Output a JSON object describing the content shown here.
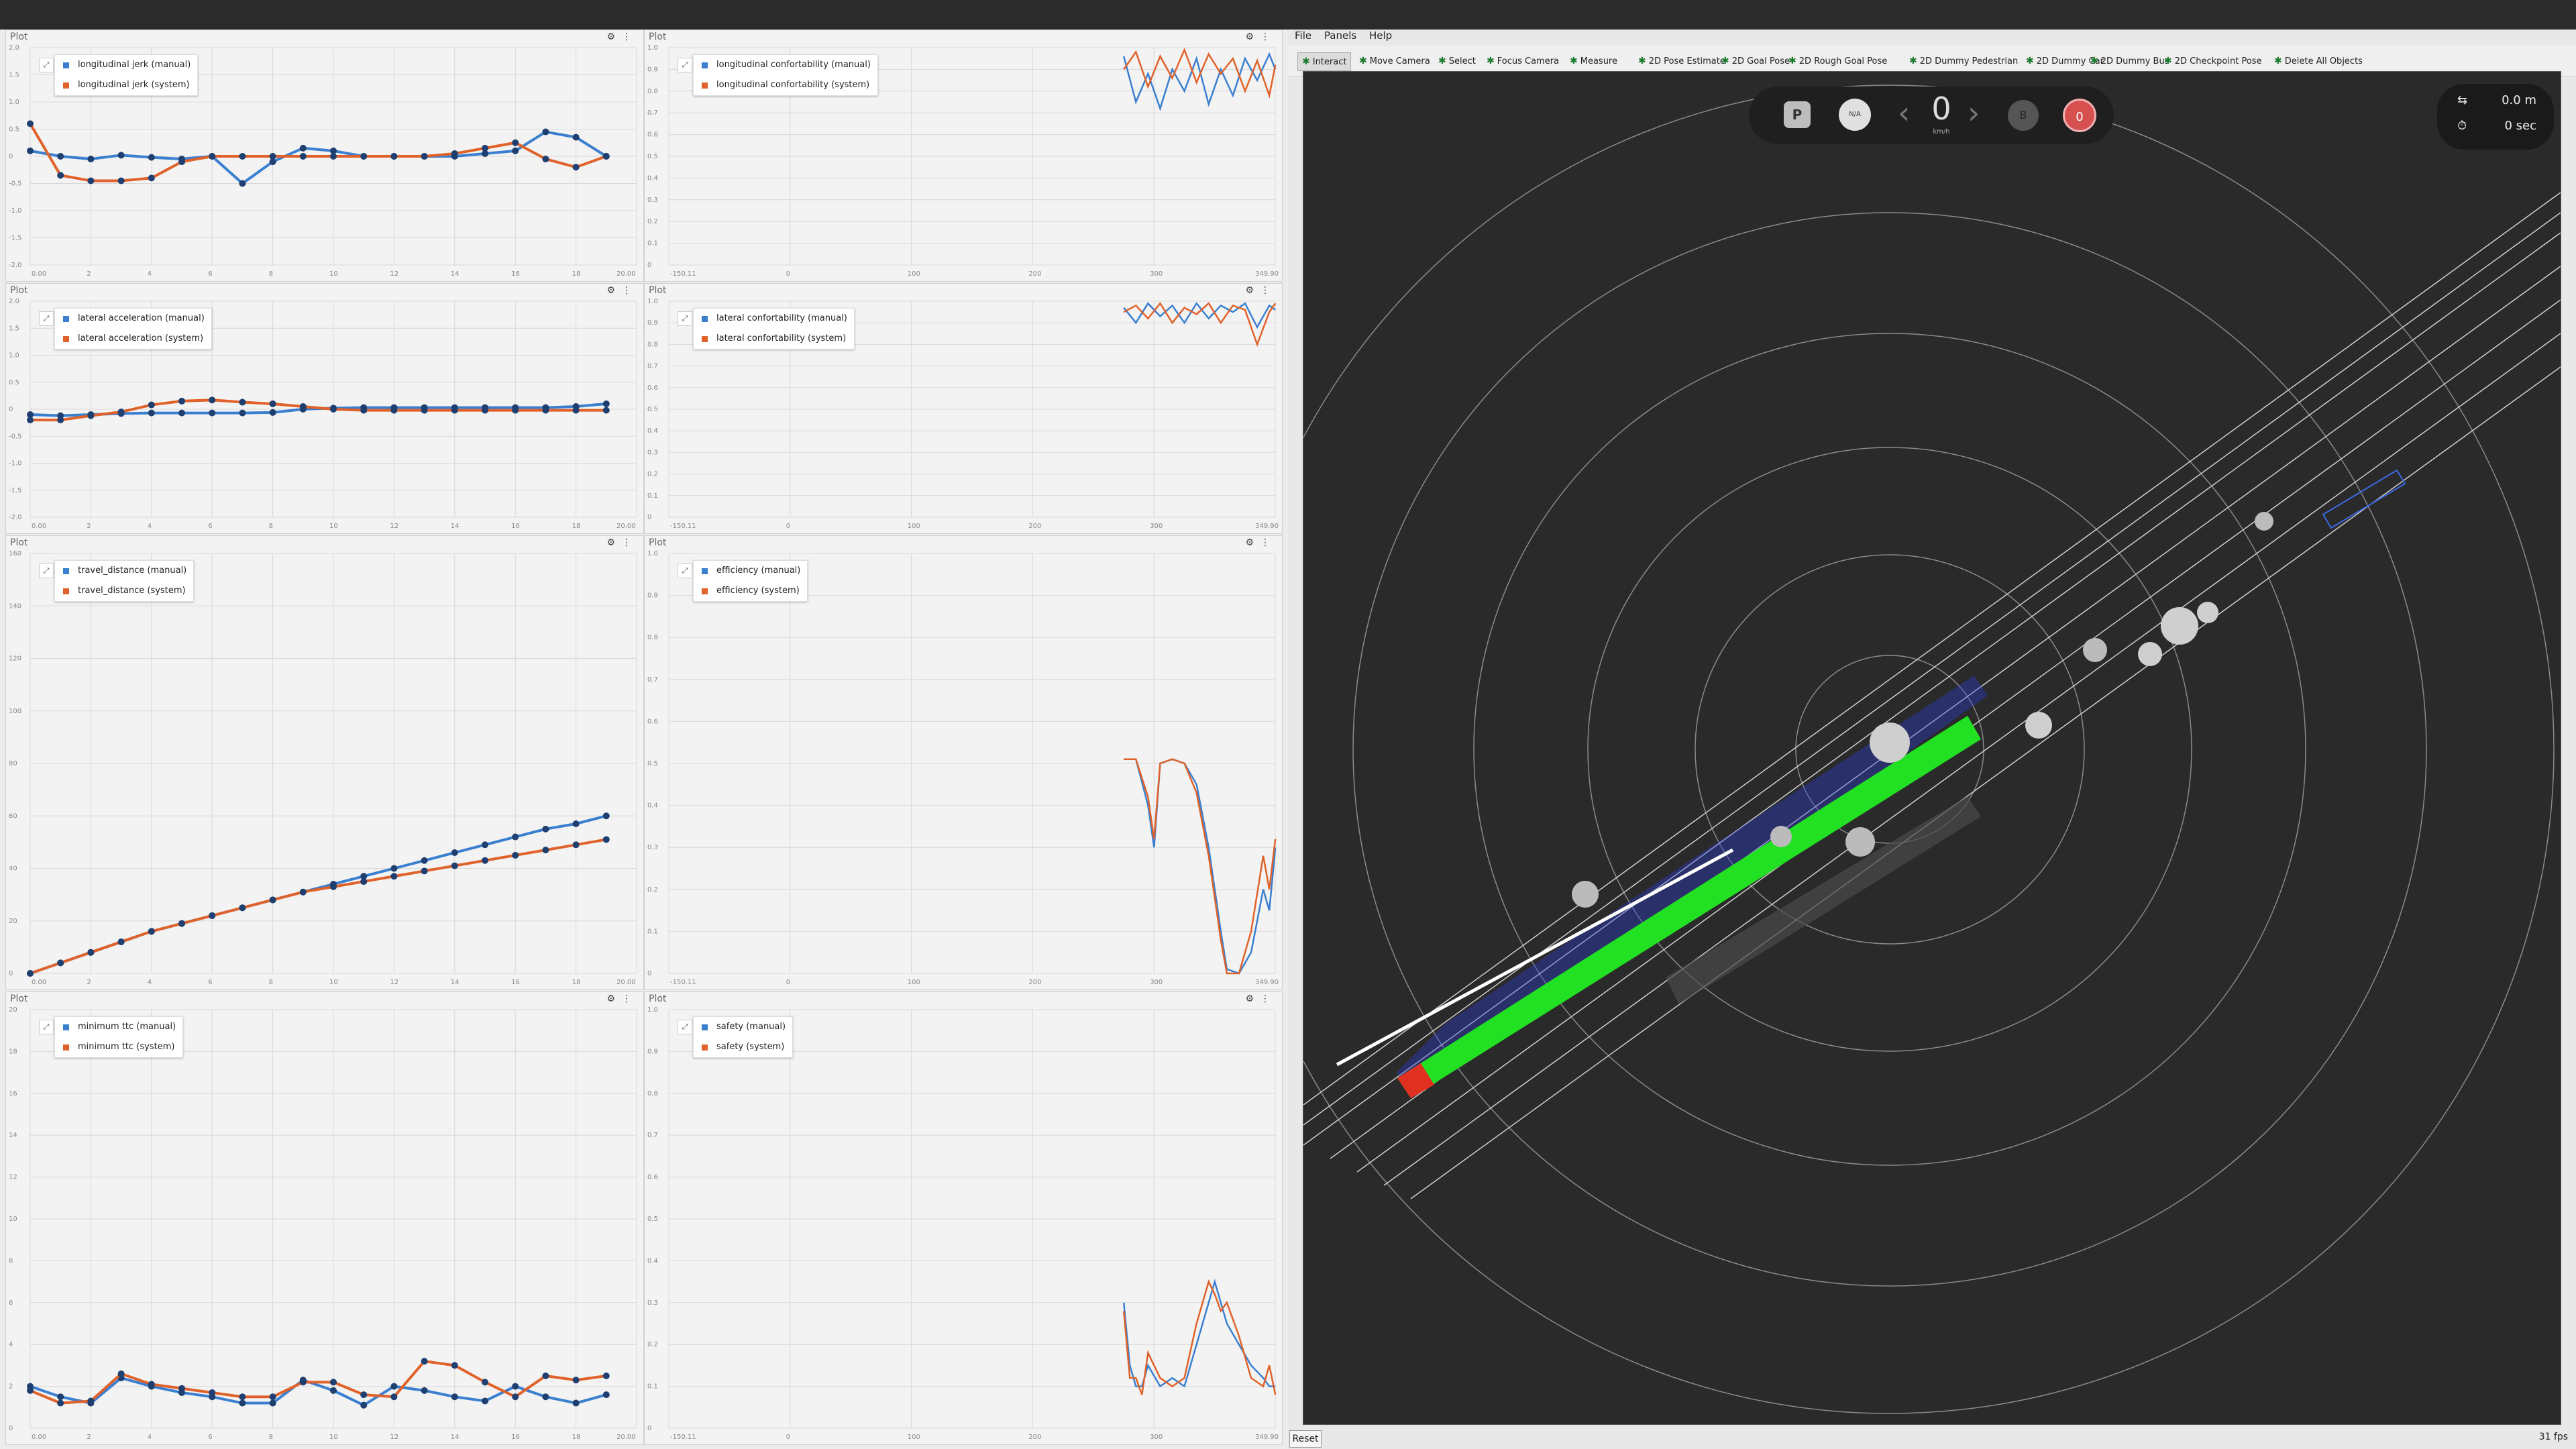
{
  "plots": [
    {
      "title": "Plot",
      "legend": [
        "longitudinal jerk (manual)",
        "longitudinal jerk (system)"
      ],
      "yticks": [
        "2.0",
        "1.5",
        "1.0",
        "0.5",
        "0",
        "-0.5",
        "-1.0",
        "-1.5",
        "-2.0"
      ],
      "xticks": [
        "0.00",
        "2",
        "4",
        "6",
        "8",
        "10",
        "12",
        "14",
        "16",
        "18",
        "20.00"
      ]
    },
    {
      "title": "Plot",
      "legend": [
        "longitudinal confortability (manual)",
        "longitudinal confortability (system)"
      ],
      "yticks": [
        "1.0",
        "0.9",
        "0.8",
        "0.7",
        "0.6",
        "0.5",
        "0.4",
        "0.3",
        "0.2",
        "0.1",
        "0"
      ],
      "xticks": [
        "-150.11",
        "0",
        "100",
        "200",
        "300",
        "349.90"
      ]
    },
    {
      "title": "Plot",
      "legend": [
        "lateral acceleration (manual)",
        "lateral acceleration (system)"
      ],
      "yticks": [
        "2.0",
        "1.5",
        "1.0",
        "0.5",
        "0",
        "-0.5",
        "-1.0",
        "-1.5",
        "-2.0"
      ],
      "xticks": [
        "0.00",
        "2",
        "4",
        "6",
        "8",
        "10",
        "12",
        "14",
        "16",
        "18",
        "20.00"
      ]
    },
    {
      "title": "Plot",
      "legend": [
        "lateral confortability (manual)",
        "lateral confortability (system)"
      ],
      "yticks": [
        "1.0",
        "0.9",
        "0.8",
        "0.7",
        "0.6",
        "0.5",
        "0.4",
        "0.3",
        "0.2",
        "0.1",
        "0"
      ],
      "xticks": [
        "-150.11",
        "0",
        "100",
        "200",
        "300",
        "349.90"
      ]
    },
    {
      "title": "Plot",
      "legend": [
        "travel_distance (manual)",
        "travel_distance (system)"
      ],
      "yticks": [
        "160",
        "140",
        "120",
        "100",
        "80",
        "60",
        "40",
        "20",
        "0"
      ],
      "xticks": [
        "0.00",
        "2",
        "4",
        "6",
        "8",
        "10",
        "12",
        "14",
        "16",
        "18",
        "20.00"
      ]
    },
    {
      "title": "Plot",
      "legend": [
        "efficiency (manual)",
        "efficiency (system)"
      ],
      "yticks": [
        "1.0",
        "0.9",
        "0.8",
        "0.7",
        "0.6",
        "0.5",
        "0.4",
        "0.3",
        "0.2",
        "0.1",
        "0"
      ],
      "xticks": [
        "-150.11",
        "0",
        "100",
        "200",
        "300",
        "349.90"
      ]
    },
    {
      "title": "Plot",
      "legend": [
        "minimum ttc (manual)",
        "minimum ttc (system)"
      ],
      "yticks": [
        "20",
        "18",
        "16",
        "14",
        "12",
        "10",
        "8",
        "6",
        "4",
        "2",
        "0"
      ],
      "xticks": [
        "0.00",
        "2",
        "4",
        "6",
        "8",
        "10",
        "12",
        "14",
        "16",
        "18",
        "20.00"
      ]
    },
    {
      "title": "Plot",
      "legend": [
        "safety (manual)",
        "safety (system)"
      ],
      "yticks": [
        "1.0",
        "0.9",
        "0.8",
        "0.7",
        "0.6",
        "0.5",
        "0.4",
        "0.3",
        "0.2",
        "0.1",
        "0"
      ],
      "xticks": [
        "-150.11",
        "0",
        "100",
        "200",
        "300",
        "349.90"
      ]
    }
  ],
  "chart_data": [
    {
      "type": "line",
      "title": "",
      "ylim": [
        -2,
        2
      ],
      "xlim": [
        0,
        20
      ],
      "series": [
        {
          "name": "longitudinal jerk (manual)",
          "x": [
            0,
            1,
            2,
            3,
            4,
            5,
            6,
            7,
            8,
            9,
            10,
            11,
            12,
            13,
            14,
            15,
            16,
            17,
            18,
            19
          ],
          "values": [
            0.1,
            0,
            -0.05,
            0.02,
            -0.02,
            -0.05,
            0,
            -0.5,
            -0.1,
            0.15,
            0.1,
            0,
            0,
            0,
            0,
            0.05,
            0.1,
            0.45,
            0.35,
            0
          ]
        },
        {
          "name": "longitudinal jerk (system)",
          "x": [
            0,
            1,
            2,
            3,
            4,
            5,
            6,
            7,
            8,
            9,
            10,
            11,
            12,
            13,
            14,
            15,
            16,
            17,
            18,
            19
          ],
          "values": [
            0.6,
            -0.35,
            -0.45,
            -0.45,
            -0.4,
            -0.1,
            0,
            0,
            0,
            0,
            0,
            0,
            0,
            0,
            0.05,
            0.15,
            0.25,
            -0.05,
            -0.2,
            0
          ]
        }
      ]
    },
    {
      "type": "line",
      "title": "",
      "ylim": [
        0,
        1
      ],
      "xlim": [
        -150.11,
        349.9
      ],
      "series": [
        {
          "name": "longitudinal confortability (manual)",
          "x": [
            225,
            235,
            245,
            255,
            265,
            275,
            285,
            295,
            305,
            315,
            325,
            335,
            345,
            350
          ],
          "values": [
            0.96,
            0.75,
            0.88,
            0.72,
            0.9,
            0.8,
            0.95,
            0.74,
            0.9,
            0.78,
            0.95,
            0.85,
            0.97,
            0.9
          ]
        },
        {
          "name": "longitudinal confortability (system)",
          "x": [
            225,
            235,
            245,
            255,
            265,
            275,
            285,
            295,
            305,
            315,
            325,
            335,
            345,
            350
          ],
          "values": [
            0.9,
            0.98,
            0.82,
            0.96,
            0.86,
            0.99,
            0.84,
            0.97,
            0.88,
            0.95,
            0.8,
            0.94,
            0.78,
            0.92
          ]
        }
      ]
    },
    {
      "type": "line",
      "title": "",
      "ylim": [
        -2,
        2
      ],
      "xlim": [
        0,
        20
      ],
      "series": [
        {
          "name": "lateral acceleration (manual)",
          "x": [
            0,
            1,
            2,
            3,
            4,
            5,
            6,
            7,
            8,
            9,
            10,
            11,
            12,
            13,
            14,
            15,
            16,
            17,
            18,
            19
          ],
          "values": [
            -0.1,
            -0.12,
            -0.1,
            -0.08,
            -0.07,
            -0.07,
            -0.07,
            -0.07,
            -0.06,
            0,
            0.02,
            0.03,
            0.03,
            0.03,
            0.03,
            0.03,
            0.03,
            0.03,
            0.05,
            0.1
          ]
        },
        {
          "name": "lateral acceleration (system)",
          "x": [
            0,
            1,
            2,
            3,
            4,
            5,
            6,
            7,
            8,
            9,
            10,
            11,
            12,
            13,
            14,
            15,
            16,
            17,
            18,
            19
          ],
          "values": [
            -0.2,
            -0.2,
            -0.12,
            -0.05,
            0.08,
            0.15,
            0.17,
            0.13,
            0.1,
            0.05,
            0,
            -0.02,
            -0.02,
            -0.02,
            -0.02,
            -0.02,
            -0.02,
            -0.02,
            -0.02,
            -0.02
          ]
        }
      ]
    },
    {
      "type": "line",
      "title": "",
      "ylim": [
        0,
        1
      ],
      "xlim": [
        -150.11,
        349.9
      ],
      "series": [
        {
          "name": "lateral confortability (manual)",
          "x": [
            225,
            235,
            245,
            255,
            265,
            275,
            285,
            295,
            305,
            315,
            325,
            335,
            345,
            350
          ],
          "values": [
            0.97,
            0.9,
            0.99,
            0.93,
            0.98,
            0.9,
            0.99,
            0.92,
            0.98,
            0.95,
            0.99,
            0.88,
            0.98,
            0.96
          ]
        },
        {
          "name": "lateral confortability (system)",
          "x": [
            225,
            235,
            245,
            255,
            265,
            275,
            285,
            295,
            305,
            315,
            325,
            335,
            345,
            350
          ],
          "values": [
            0.95,
            0.98,
            0.92,
            0.99,
            0.9,
            0.97,
            0.94,
            0.99,
            0.9,
            0.98,
            0.96,
            0.8,
            0.95,
            0.99
          ]
        }
      ]
    },
    {
      "type": "line",
      "title": "",
      "ylim": [
        0,
        160
      ],
      "xlim": [
        0,
        20
      ],
      "series": [
        {
          "name": "travel_distance (manual)",
          "x": [
            0,
            1,
            2,
            3,
            4,
            5,
            6,
            7,
            8,
            9,
            10,
            11,
            12,
            13,
            14,
            15,
            16,
            17,
            18,
            19
          ],
          "values": [
            0,
            4,
            8,
            12,
            16,
            19,
            22,
            25,
            28,
            31,
            34,
            37,
            40,
            43,
            46,
            49,
            52,
            55,
            57,
            60
          ]
        },
        {
          "name": "travel_distance (system)",
          "x": [
            0,
            1,
            2,
            3,
            4,
            5,
            6,
            7,
            8,
            9,
            10,
            11,
            12,
            13,
            14,
            15,
            16,
            17,
            18,
            19
          ],
          "values": [
            0,
            4,
            8,
            12,
            16,
            19,
            22,
            25,
            28,
            31,
            33,
            35,
            37,
            39,
            41,
            43,
            45,
            47,
            49,
            51
          ]
        }
      ]
    },
    {
      "type": "line",
      "title": "",
      "ylim": [
        0,
        1
      ],
      "xlim": [
        -150.11,
        349.9
      ],
      "series": [
        {
          "name": "efficiency (manual)",
          "x": [
            225,
            235,
            245,
            250,
            255,
            265,
            275,
            285,
            295,
            305,
            310,
            320,
            330,
            340,
            345,
            350
          ],
          "values": [
            0.51,
            0.51,
            0.4,
            0.3,
            0.5,
            0.51,
            0.5,
            0.45,
            0.3,
            0.1,
            0.01,
            0,
            0.05,
            0.2,
            0.15,
            0.3
          ]
        },
        {
          "name": "efficiency (system)",
          "x": [
            225,
            235,
            245,
            250,
            255,
            265,
            275,
            285,
            295,
            305,
            310,
            320,
            330,
            340,
            345,
            350
          ],
          "values": [
            0.51,
            0.51,
            0.42,
            0.32,
            0.5,
            0.51,
            0.5,
            0.43,
            0.28,
            0.08,
            0,
            0,
            0.1,
            0.28,
            0.2,
            0.32
          ]
        }
      ]
    },
    {
      "type": "line",
      "title": "",
      "ylim": [
        0,
        20
      ],
      "xlim": [
        0,
        20
      ],
      "series": [
        {
          "name": "minimum ttc (manual)",
          "x": [
            0,
            1,
            2,
            3,
            4,
            5,
            6,
            7,
            8,
            9,
            10,
            11,
            12,
            13,
            14,
            15,
            16,
            17,
            18,
            19
          ],
          "values": [
            2,
            1.5,
            1.2,
            2.4,
            2,
            1.7,
            1.5,
            1.2,
            1.2,
            2.3,
            1.8,
            1.1,
            2,
            1.8,
            1.5,
            1.3,
            2,
            1.5,
            1.2,
            1.6
          ]
        },
        {
          "name": "minimum ttc (system)",
          "x": [
            0,
            1,
            2,
            3,
            4,
            5,
            6,
            7,
            8,
            9,
            10,
            11,
            12,
            13,
            14,
            15,
            16,
            17,
            18,
            19
          ],
          "values": [
            1.8,
            1.2,
            1.3,
            2.6,
            2.1,
            1.9,
            1.7,
            1.5,
            1.5,
            2.2,
            2.2,
            1.6,
            1.5,
            3.2,
            3,
            2.2,
            1.5,
            2.5,
            2.3,
            2.5
          ]
        }
      ]
    },
    {
      "type": "line",
      "title": "",
      "ylim": [
        0,
        1
      ],
      "xlim": [
        -150.11,
        349.9
      ],
      "series": [
        {
          "name": "safety (manual)",
          "x": [
            225,
            230,
            235,
            240,
            245,
            255,
            265,
            275,
            285,
            290,
            295,
            300,
            305,
            310,
            320,
            330,
            340,
            345,
            350
          ],
          "values": [
            0.3,
            0.15,
            0.1,
            0.1,
            0.15,
            0.1,
            0.12,
            0.1,
            0.2,
            0.25,
            0.3,
            0.35,
            0.3,
            0.25,
            0.2,
            0.15,
            0.12,
            0.1,
            0.1
          ]
        },
        {
          "name": "safety (system)",
          "x": [
            225,
            230,
            235,
            240,
            245,
            255,
            265,
            275,
            285,
            290,
            295,
            300,
            305,
            310,
            320,
            330,
            340,
            345,
            350
          ],
          "values": [
            0.28,
            0.12,
            0.12,
            0.08,
            0.18,
            0.12,
            0.1,
            0.12,
            0.25,
            0.3,
            0.35,
            0.32,
            0.28,
            0.3,
            0.22,
            0.12,
            0.1,
            0.15,
            0.08
          ]
        }
      ]
    }
  ],
  "colors": {
    "manual": "#3a7fd0",
    "system": "#e0622a"
  },
  "rviz": {
    "menu": [
      "File",
      "Panels",
      "Help"
    ],
    "tools": [
      "Interact",
      "Move Camera",
      "Select",
      "Focus Camera",
      "Measure",
      "2D Pose Estimate",
      "2D Goal Pose",
      "2D Rough Goal Pose",
      "2D Dummy Pedestrian",
      "2D Dummy Car",
      "2D Dummy Bus",
      "2D Checkpoint Pose",
      "Delete All Objects"
    ],
    "hud": {
      "gear": "P",
      "steer": "N/A",
      "speed": "0",
      "unit": "km/h",
      "blinker": "B",
      "estop": "0"
    },
    "info": {
      "distance": "0.0 m",
      "time": "0 sec"
    },
    "reset": "Reset",
    "fps": "31 fps"
  }
}
